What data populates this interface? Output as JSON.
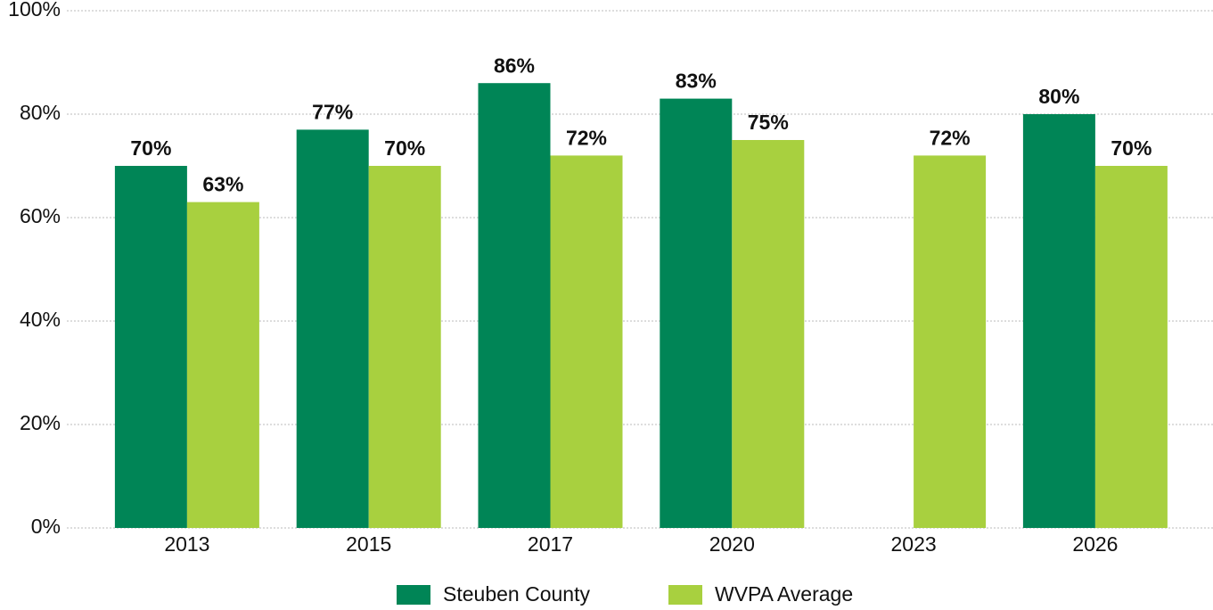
{
  "chart_data": {
    "type": "bar",
    "categories": [
      "2013",
      "2015",
      "2017",
      "2020",
      "2023",
      "2026"
    ],
    "series": [
      {
        "name": "Steuben County",
        "color": "#008556",
        "values": [
          70,
          77,
          86,
          83,
          null,
          80
        ],
        "value_labels": [
          "70%",
          "77%",
          "86%",
          "83%",
          null,
          "80%"
        ]
      },
      {
        "name": "WVPA Average",
        "color": "#a8d03f",
        "values": [
          63,
          70,
          72,
          75,
          72,
          70
        ],
        "value_labels": [
          "63%",
          "70%",
          "72%",
          "75%",
          "72%",
          "70%"
        ]
      }
    ],
    "ylim": [
      0,
      100
    ],
    "yticks": [
      {
        "value": 0,
        "label": "0%"
      },
      {
        "value": 20,
        "label": "20%"
      },
      {
        "value": 40,
        "label": "40%"
      },
      {
        "value": 60,
        "label": "60%"
      },
      {
        "value": 80,
        "label": "80%"
      },
      {
        "value": 100,
        "label": "100%"
      }
    ],
    "grid": true,
    "legend": "bottom"
  }
}
